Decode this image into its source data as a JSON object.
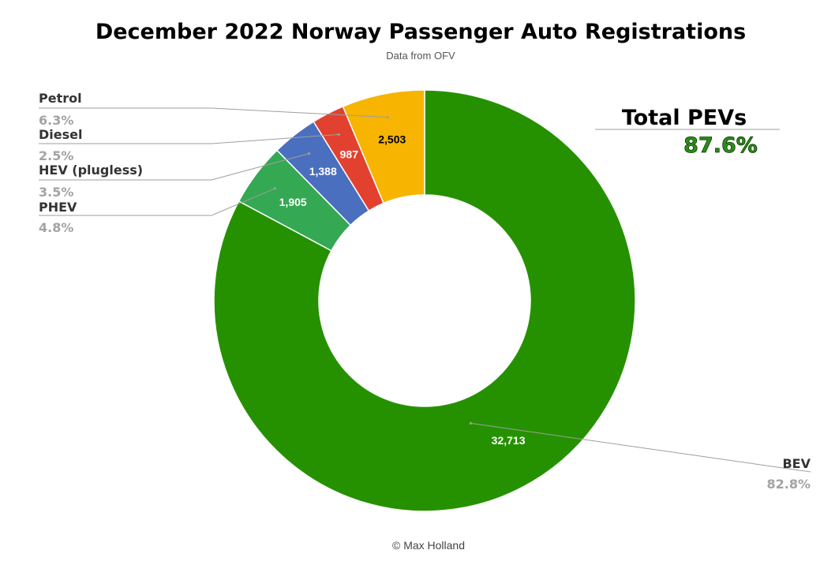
{
  "chart_data": {
    "type": "pie",
    "title": "December 2022 Norway Passenger Auto Registrations",
    "subtitle": "Data from OFV",
    "donut": true,
    "series": [
      {
        "name": "BEV",
        "value": 32713,
        "value_label": "32,713",
        "percent_label": "82.8%",
        "color": "#259100",
        "label_color": "#ffffff"
      },
      {
        "name": "PHEV",
        "value": 1905,
        "value_label": "1,905",
        "percent_label": "4.8%",
        "color": "#34a853",
        "label_color": "#ffffff"
      },
      {
        "name": "HEV (plugless)",
        "value": 1388,
        "value_label": "1,388",
        "percent_label": "3.5%",
        "color": "#4a6fbe",
        "label_color": "#ffffff"
      },
      {
        "name": "Diesel",
        "value": 987,
        "value_label": "987",
        "percent_label": "2.5%",
        "color": "#e2412f",
        "label_color": "#ffffff"
      },
      {
        "name": "Petrol",
        "value": 2503,
        "value_label": "2,503",
        "percent_label": "6.3%",
        "color": "#f7b400",
        "label_color": "#000000"
      }
    ],
    "annotation": {
      "label": "Total PEVs",
      "value": "87.6%"
    },
    "credit": "© Max Holland"
  }
}
